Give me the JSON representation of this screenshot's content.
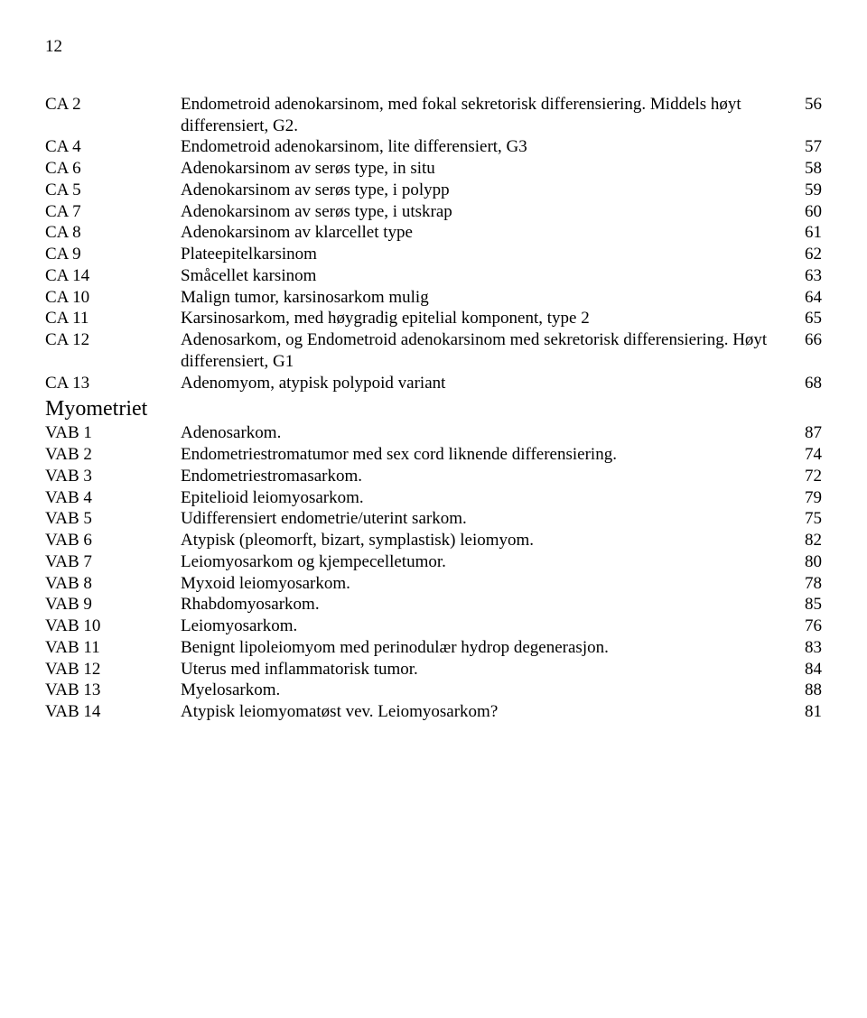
{
  "page_number": "12",
  "rows": [
    {
      "code": "CA 2",
      "desc": "Endometroid adenokarsinom, med fokal sekretorisk differensiering. Middels høyt differensiert, G2.",
      "num": "56"
    },
    {
      "code": "CA 4",
      "desc": "Endometroid adenokarsinom, lite differensiert, G3",
      "num": "57"
    },
    {
      "code": "CA 6",
      "desc": "Adenokarsinom av serøs type, in situ",
      "num": "58"
    },
    {
      "code": "CA 5",
      "desc": "Adenokarsinom av serøs type, i polypp",
      "num": "59"
    },
    {
      "code": "CA 7",
      "desc": "Adenokarsinom av serøs type, i utskrap",
      "num": "60"
    },
    {
      "code": "CA 8",
      "desc": "Adenokarsinom av klarcellet type",
      "num": "61"
    },
    {
      "code": "CA 9",
      "desc": "Plateepitelkarsinom",
      "num": "62"
    },
    {
      "code": "CA 14",
      "desc": "Småcellet karsinom",
      "num": "63"
    },
    {
      "code": "CA 10",
      "desc": "Malign tumor, karsinosarkom mulig",
      "num": "64"
    },
    {
      "code": "CA 11",
      "desc": "Karsinosarkom, med høygradig epitelial komponent, type 2",
      "num": "65"
    },
    {
      "code": "CA 12",
      "desc": "Adenosarkom, og Endometroid adenokarsinom med sekretorisk differensiering. Høyt differensiert, G1",
      "num": "66"
    },
    {
      "code": "CA 13",
      "desc": "Adenomyom, atypisk polypoid variant",
      "num": "68"
    }
  ],
  "section_heading": "Myometriet",
  "rows2": [
    {
      "code": "VAB 1",
      "desc": "Adenosarkom.",
      "num": "87"
    },
    {
      "code": "VAB 2",
      "desc": "Endometriestromatumor med sex cord liknende differensiering.",
      "num": "74"
    },
    {
      "code": "VAB 3",
      "desc": "Endometriestromasarkom.",
      "num": "72"
    },
    {
      "code": "VAB 4",
      "desc": "Epitelioid leiomyosarkom.",
      "num": "79"
    },
    {
      "code": "VAB 5",
      "desc": "Udifferensiert endometrie/uterint sarkom.",
      "num": "75"
    },
    {
      "code": "VAB 6",
      "desc": "Atypisk (pleomorft, bizart, symplastisk) leiomyom.",
      "num": "82"
    },
    {
      "code": "VAB 7",
      "desc": "Leiomyosarkom og kjempecelletumor.",
      "num": "80"
    },
    {
      "code": "VAB 8",
      "desc": "Myxoid leiomyosarkom.",
      "num": "78"
    },
    {
      "code": "VAB 9",
      "desc": "Rhabdomyosarkom.",
      "num": "85"
    },
    {
      "code": "VAB 10",
      "desc": "Leiomyosarkom.",
      "num": "76"
    },
    {
      "code": "VAB 11",
      "desc": "Benignt lipoleiomyom med perinodulær hydrop degenerasjon.",
      "num": "83"
    },
    {
      "code": "VAB 12",
      "desc": "Uterus med inflammatorisk tumor.",
      "num": "84"
    },
    {
      "code": "VAB 13",
      "desc": "Myelosarkom.",
      "num": "88"
    },
    {
      "code": "VAB 14",
      "desc": "Atypisk leiomyomatøst vev. Leiomyosarkom?",
      "num": "81"
    }
  ]
}
